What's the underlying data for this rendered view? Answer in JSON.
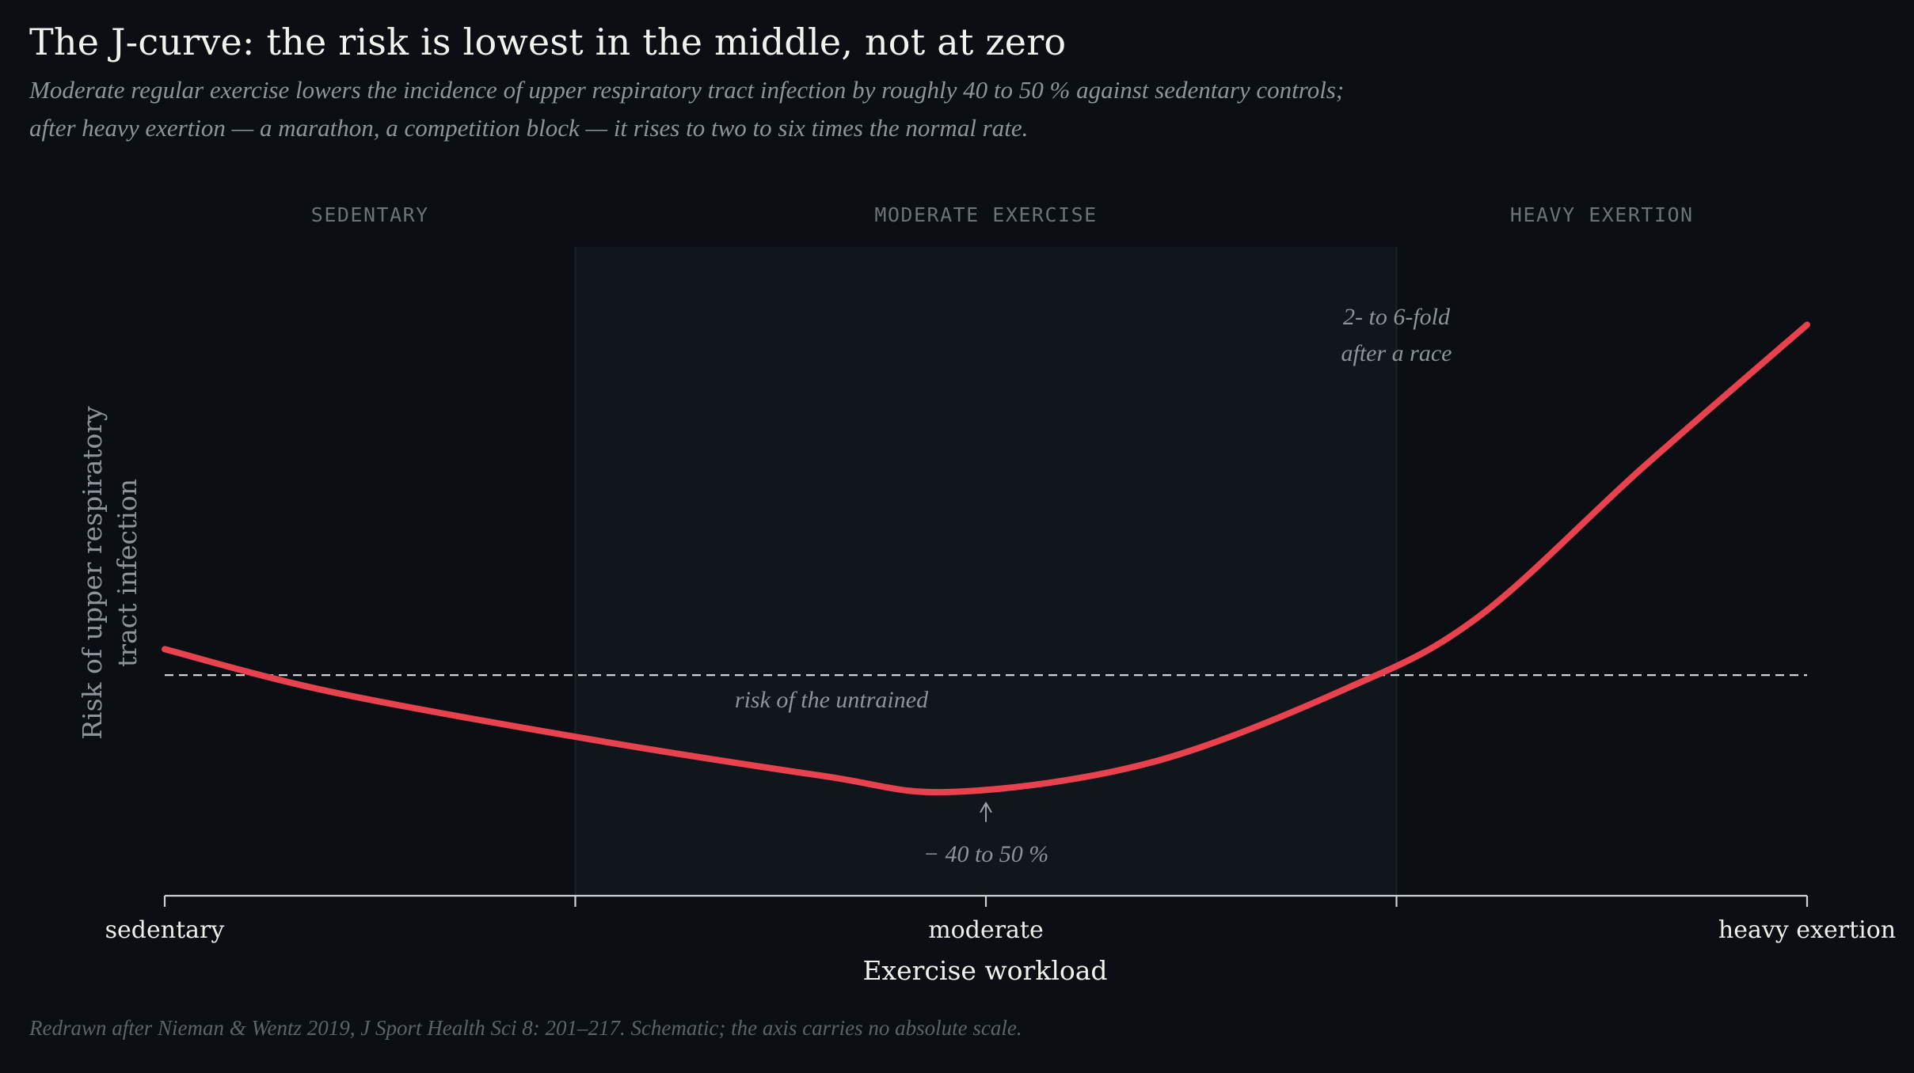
{
  "header": {
    "title": "The J-curve: the risk is lowest in the middle, not at zero",
    "subtitle_line1": "Moderate regular exercise lowers the incidence of upper respiratory tract infection by roughly 40 to 50 % against sedentary controls;",
    "subtitle_line2": "after heavy exertion — a marathon, a competition block — it rises to two to six times the normal rate."
  },
  "footer": {
    "note": "Redrawn after Nieman & Wentz 2019, J Sport Health Sci 8: 201–217. Schematic; the axis carries no absolute scale."
  },
  "colors": {
    "background": "#0b0f14",
    "curve": "#e8424f",
    "shaded_zone": "#10161b",
    "baseline": "#d9dcdf",
    "axis": "#cfd2d4"
  },
  "chart_data": {
    "type": "line",
    "xlabel": "Exercise workload",
    "ylabel_line1": "Risk of upper respiratory",
    "ylabel_line2": "tract infection",
    "xlim": [
      0,
      1
    ],
    "ylim": [
      0,
      1
    ],
    "grid": false,
    "x_ticks": [
      0,
      0.25,
      0.5,
      0.75,
      1
    ],
    "x_tick_labels": [
      {
        "x": 0,
        "label": "sedentary"
      },
      {
        "x": 0.5,
        "label": "moderate"
      },
      {
        "x": 1,
        "label": "heavy exertion"
      }
    ],
    "zones": [
      {
        "name": "SEDENTARY",
        "from": 0,
        "to": 0.25,
        "shaded": false
      },
      {
        "name": "MODERATE EXERCISE",
        "from": 0.25,
        "to": 0.75,
        "shaded": true
      },
      {
        "name": "HEAVY EXERTION",
        "from": 0.75,
        "to": 1,
        "shaded": false
      }
    ],
    "baseline": {
      "y": 0.34,
      "label": "risk of the untrained"
    },
    "series": [
      {
        "x": [
          0,
          0.1,
          0.25,
          0.4,
          0.48,
          0.6,
          0.72,
          0.8,
          0.9,
          1.0
        ],
        "y": [
          0.38,
          0.315,
          0.245,
          0.185,
          0.16,
          0.205,
          0.32,
          0.43,
          0.66,
          0.88
        ]
      }
    ],
    "annotations": [
      {
        "text": "− 40 to 50 %",
        "x": 0.5,
        "y": 0.16
      },
      {
        "text_line1": "2- to 6-fold",
        "text_line2": "after a race",
        "x": 0.75,
        "y": 0.88
      }
    ]
  }
}
